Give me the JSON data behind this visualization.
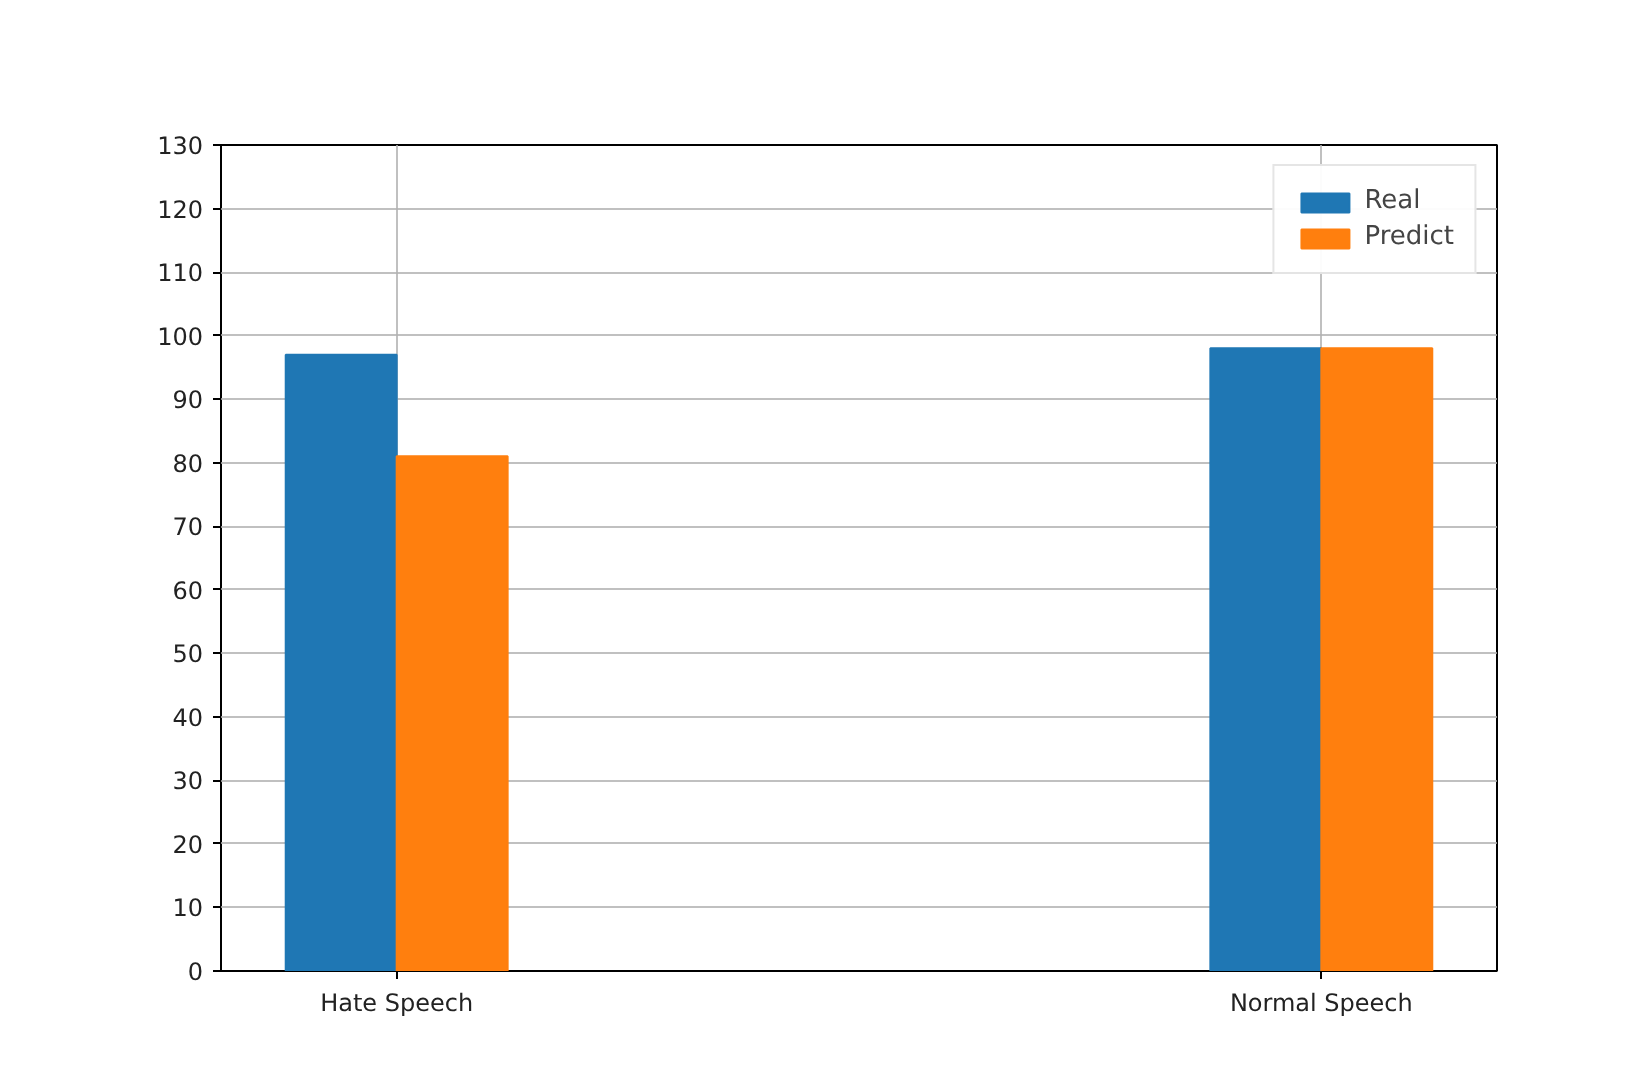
{
  "chart_data": {
    "type": "bar",
    "categories": [
      "Hate Speech",
      "Normal Speech"
    ],
    "series": [
      {
        "name": "Real",
        "color": "#1f77b4",
        "values": [
          97,
          98
        ]
      },
      {
        "name": "Predict",
        "color": "#ff7f0e",
        "values": [
          81,
          98
        ]
      }
    ],
    "ylim": [
      0,
      130
    ],
    "yticks": [
      0,
      10,
      20,
      30,
      40,
      50,
      60,
      70,
      80,
      90,
      100,
      110,
      120,
      130
    ],
    "grid": true,
    "legend": "top right"
  }
}
